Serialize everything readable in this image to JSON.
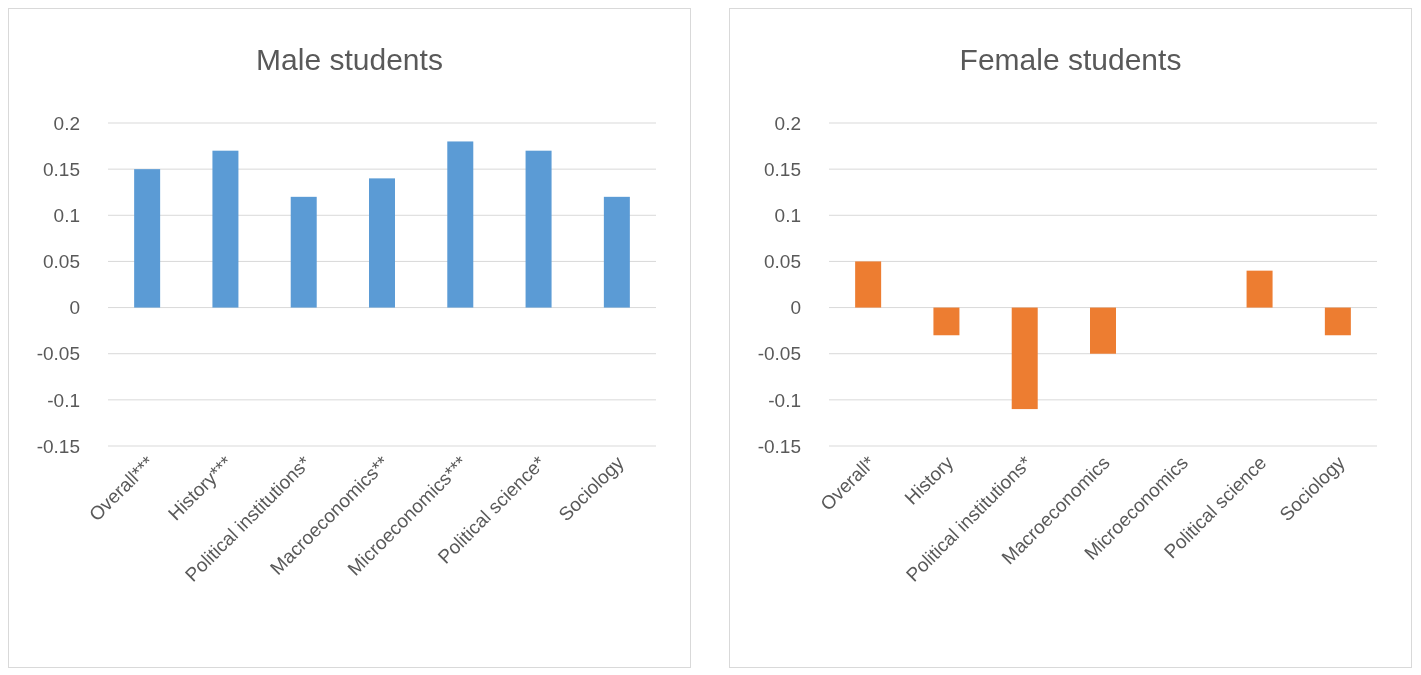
{
  "chart_data": [
    {
      "type": "bar",
      "title": "Male students",
      "categories": [
        "Overall***",
        "History***",
        "Political institutions*",
        "Macroeconomics**",
        "Microeconomics***",
        "Political science*",
        "Sociology"
      ],
      "values": [
        0.15,
        0.17,
        0.12,
        0.14,
        0.18,
        0.17,
        0.12
      ],
      "color": "#5b9bd5",
      "ylim": [
        -0.15,
        0.2
      ],
      "yticks": [
        -0.15,
        -0.1,
        -0.05,
        0,
        0.05,
        0.1,
        0.15,
        0.2
      ],
      "grid": "y"
    },
    {
      "type": "bar",
      "title": "Female students",
      "categories": [
        "Overall*",
        "History",
        "Political institutions*",
        "Macroeconomics",
        "Microeconomics",
        "Political science",
        "Sociology"
      ],
      "values": [
        0.05,
        -0.03,
        -0.11,
        -0.05,
        0,
        0.04,
        -0.03
      ],
      "color": "#ed7d31",
      "ylim": [
        -0.15,
        0.2
      ],
      "yticks": [
        -0.15,
        -0.1,
        -0.05,
        0,
        0.05,
        0.1,
        0.15,
        0.2
      ],
      "grid": "y"
    }
  ]
}
